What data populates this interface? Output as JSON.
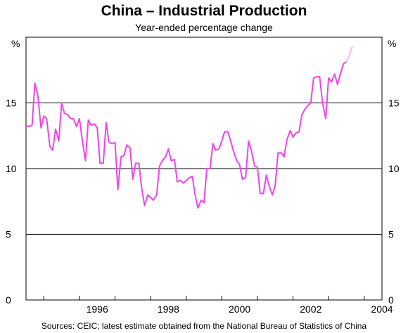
{
  "chart_data": {
    "type": "line",
    "title": "China – Industrial Production",
    "subtitle": "Year-ended percentage change",
    "ylabel_left": "%",
    "ylabel_right": "%",
    "ylim": [
      0,
      20
    ],
    "yticks": [
      0,
      5,
      10,
      15
    ],
    "xlim": [
      1994.5,
      2004.5
    ],
    "xticks": [
      "1996",
      "1998",
      "2000",
      "2002",
      "2004"
    ],
    "grid": "horizontal",
    "line_color": "#ee44ee",
    "estimate_color": "#f6b8f6",
    "series": [
      {
        "x": [
          1994.5,
          1994.58,
          1994.67,
          1994.75,
          1994.83,
          1994.92,
          1995.0,
          1995.08,
          1995.17,
          1995.25,
          1995.33,
          1995.42,
          1995.5,
          1995.58,
          1995.67,
          1995.75,
          1995.83,
          1995.92,
          1996.0,
          1996.08,
          1996.17,
          1996.25,
          1996.33,
          1996.42,
          1996.5,
          1996.58,
          1996.67,
          1996.75,
          1996.83,
          1996.92,
          1997.0,
          1997.08,
          1997.17,
          1997.25,
          1997.33,
          1997.42,
          1997.5,
          1997.58,
          1997.67,
          1997.75,
          1997.83,
          1997.92,
          1998.0,
          1998.08,
          1998.17,
          1998.25,
          1998.33,
          1998.42,
          1998.5,
          1998.58,
          1998.67,
          1998.75,
          1998.83,
          1998.92,
          1999.0,
          1999.08,
          1999.17,
          1999.25,
          1999.33,
          1999.42,
          1999.5,
          1999.58,
          1999.67,
          1999.75,
          1999.83,
          1999.92,
          2000.0,
          2000.08,
          2000.17,
          2000.25,
          2000.33,
          2000.42,
          2000.5,
          2000.58,
          2000.67,
          2000.75,
          2000.83,
          2000.92,
          2001.0,
          2001.08,
          2001.17,
          2001.25,
          2001.33,
          2001.42,
          2001.5,
          2001.58,
          2001.67,
          2001.75,
          2001.83,
          2001.92,
          2002.0,
          2002.08,
          2002.17,
          2002.25,
          2002.33,
          2002.42,
          2002.5,
          2002.58,
          2002.67,
          2002.75,
          2002.83,
          2002.92,
          2003.0,
          2003.08,
          2003.17,
          2003.25,
          2003.33,
          2003.42,
          2003.5,
          2003.58,
          2003.67
        ],
        "y": [
          13.3,
          13.2,
          13.3,
          16.5,
          15.6,
          13.1,
          14.0,
          13.8,
          11.7,
          11.4,
          13.0,
          12.1,
          15.0,
          14.2,
          14.1,
          13.8,
          13.8,
          13.2,
          13.8,
          12.2,
          10.6,
          13.7,
          13.3,
          13.4,
          13.1,
          10.4,
          10.4,
          13.5,
          12.0,
          11.9,
          12.0,
          8.4,
          10.9,
          11.0,
          11.8,
          11.6,
          9.2,
          10.4,
          10.4,
          8.5,
          7.2,
          8.0,
          7.8,
          7.6,
          8.0,
          10.2,
          10.6,
          10.9,
          11.5,
          10.6,
          10.7,
          9.0,
          9.1,
          8.9,
          9.1,
          9.3,
          9.4,
          8.0,
          7.0,
          7.6,
          7.4,
          10.0,
          10.0,
          11.9,
          11.4,
          11.5,
          12.1,
          12.8,
          12.8,
          12.1,
          11.3,
          10.6,
          10.3,
          9.2,
          9.3,
          12.1,
          11.4,
          10.2,
          10.1,
          8.1,
          8.1,
          9.5,
          8.7,
          8.0,
          8.7,
          11.2,
          11.2,
          10.9,
          12.2,
          12.9,
          12.4,
          12.7,
          12.8,
          14.1,
          14.5,
          14.8,
          15.0,
          16.9,
          17.0,
          17.0,
          15.0,
          13.8,
          16.9,
          16.6,
          17.2,
          16.4,
          17.2,
          18.0,
          18.1,
          18.6,
          19.3
        ]
      }
    ],
    "estimate_from_index": 108,
    "source": "Sources: CEIC; latest estimate obtained from the National Bureau of Statistics of China"
  }
}
